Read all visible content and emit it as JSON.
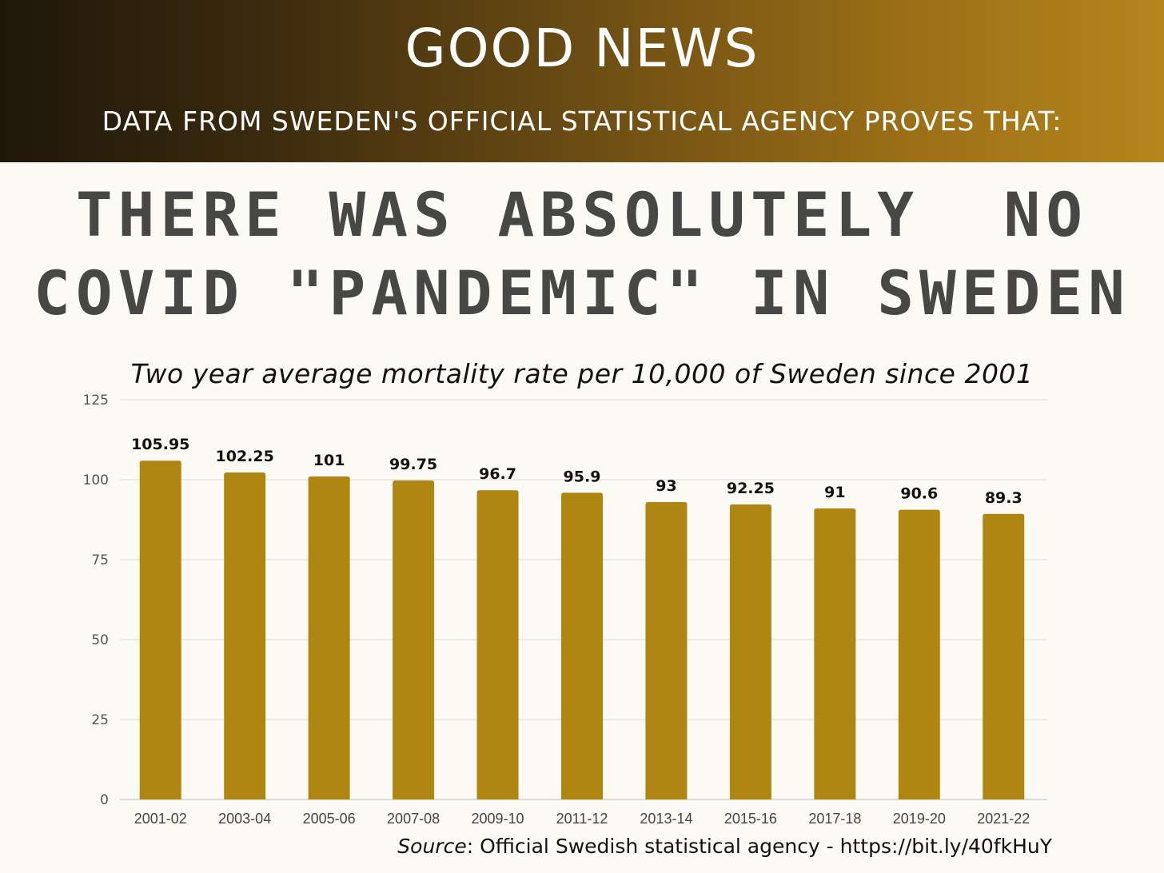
{
  "header": {
    "title": "GOOD NEWS",
    "subtitle": "DATA FROM SWEDEN'S OFFICIAL STATISTICAL AGENCY PROVES THAT:"
  },
  "headline": {
    "line1": "THERE WAS ABSOLUTELY  NO",
    "line2": "COVID \"PANDEMIC\" IN SWEDEN"
  },
  "colors": {
    "bar": "#b08613",
    "banner_dark": "#1f170a",
    "banner_gold": "#b5861c",
    "headline": "#474745"
  },
  "chart_data": {
    "type": "bar",
    "title": "Two year average mortality rate per 10,000 of Sweden since 2001",
    "xlabel": "",
    "ylabel": "",
    "categories": [
      "2001-02",
      "2003-04",
      "2005-06",
      "2007-08",
      "2009-10",
      "2011-12",
      "2013-14",
      "2015-16",
      "2017-18",
      "2019-20",
      "2021-22"
    ],
    "values": [
      105.95,
      102.25,
      101,
      99.75,
      96.7,
      95.9,
      93,
      92.25,
      91,
      90.6,
      89.3
    ],
    "value_labels": [
      "105.95",
      "102.25",
      "101",
      "99.75",
      "96.7",
      "95.9",
      "93",
      "92.25",
      "91",
      "90.6",
      "89.3"
    ],
    "ylim": [
      0,
      125
    ],
    "yticks": [
      0,
      25,
      50,
      75,
      100,
      125
    ],
    "grid": true,
    "legend": "none"
  },
  "source": {
    "label": "Source",
    "text": ": Official Swedish statistical agency - https://bit.ly/40fkHuY"
  }
}
